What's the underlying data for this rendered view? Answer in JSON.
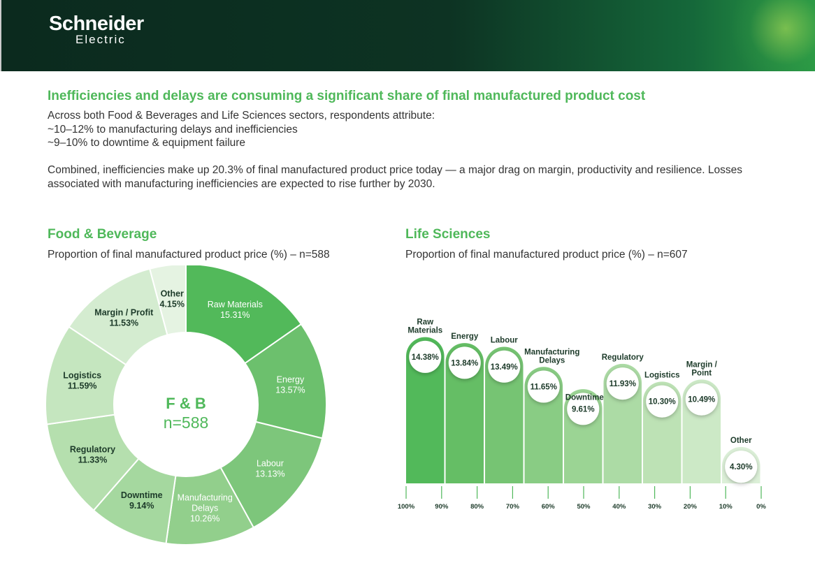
{
  "brand": {
    "name": "Schneider",
    "name2": "Electric"
  },
  "headline": "Inefficiencies and delays are consuming a significant share of final manufactured product cost",
  "intro": [
    "Across both Food & Beverages and Life Sciences sectors, respondents attribute:",
    "~10–12% to manufacturing delays and inefficiencies",
    "~9–10% to downtime & equipment failure",
    "",
    "Combined, inefficiencies make up 20.3% of final manufactured product price today — a major drag on margin, productivity and resilience. Losses associated with manufacturing inefficiencies are expected to rise further by 2030."
  ],
  "colors": {
    "accent": "#4fb85a",
    "header": "#0d3323"
  },
  "chart_data": [
    {
      "type": "pie",
      "title": "Food & Beverage",
      "subtitle": "Proportion of final manufactured product price (%) – n=588",
      "center_label": "F & B",
      "center_sub": "n=588",
      "categories": [
        "Raw Materials",
        "Energy",
        "Labour",
        "Manufacturing Delays",
        "Downtime",
        "Regulatory",
        "Logistics",
        "Margin / Profit",
        "Other"
      ],
      "values": [
        15.31,
        13.57,
        13.13,
        10.26,
        9.14,
        11.33,
        11.59,
        11.53,
        4.15
      ],
      "value_labels": [
        "15.31%",
        "13.57%",
        "13.13%",
        "10.26%",
        "9.14%",
        "11.33%",
        "11.59%",
        "11.53%",
        "4.15%"
      ],
      "colors": [
        "#52b95a",
        "#6cc06d",
        "#7dc67b",
        "#92cf8c",
        "#a5d89f",
        "#b5dfae",
        "#c5e6bf",
        "#d4ecd0",
        "#e5f3e2"
      ]
    },
    {
      "type": "bar",
      "title": "Life Sciences",
      "subtitle": "Proportion of final manufactured product price (%) – n=607",
      "categories": [
        "Raw Materials",
        "Energy",
        "Labour",
        "Manufacturing Delays",
        "Downtime",
        "Regulatory",
        "Logistics",
        "Margin / Point",
        "Other"
      ],
      "values": [
        14.38,
        13.84,
        13.49,
        11.65,
        9.61,
        11.93,
        10.3,
        10.49,
        4.3
      ],
      "value_labels": [
        "14.38%",
        "13.84%",
        "13.49%",
        "11.65%",
        "9.61%",
        "11.93%",
        "10.30%",
        "10.49%",
        "4.30%"
      ],
      "axis_ticks": [
        "100%",
        "90%",
        "80%",
        "70%",
        "60%",
        "50%",
        "40%",
        "30%",
        "20%",
        "10%",
        "0%"
      ],
      "colors": [
        "#52b95a",
        "#65be65",
        "#76c473",
        "#89cc84",
        "#9bd494",
        "#acdba5",
        "#bde2b5",
        "#cce9c6",
        "#dcf0d8"
      ]
    }
  ]
}
